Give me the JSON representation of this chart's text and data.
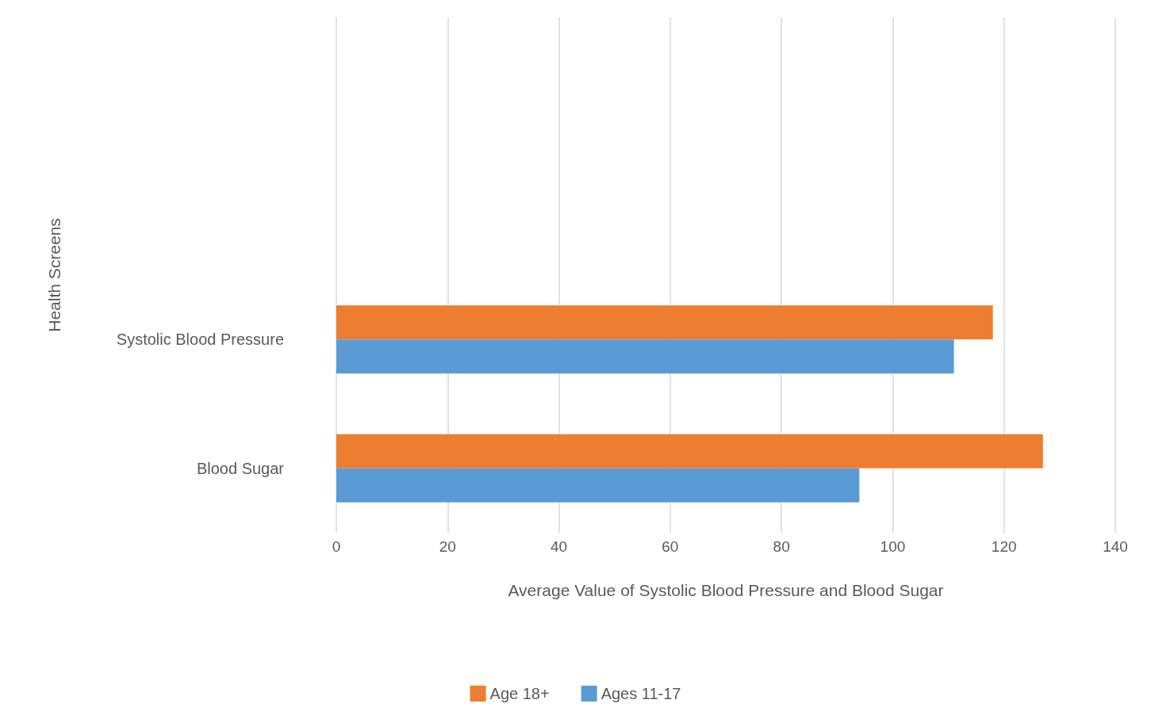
{
  "chart_data": {
    "type": "bar",
    "orientation": "horizontal",
    "xlabel": "Average Value of Systolic Blood Pressure and Blood Sugar",
    "ylabel": "Health Screens",
    "categories": [
      null,
      null,
      "Systolic Blood Pressure",
      "Blood Sugar"
    ],
    "series": [
      {
        "name": "Age 18+",
        "color": "#ed7d31",
        "values": [
          null,
          null,
          118,
          127
        ]
      },
      {
        "name": "Ages 11-17",
        "color": "#5b9bd5",
        "values": [
          null,
          null,
          111,
          94
        ]
      }
    ],
    "xlim": [
      0,
      140
    ],
    "xticks": [
      0,
      20,
      40,
      60,
      80,
      100,
      120,
      140
    ],
    "grid": "x",
    "legend": "bottom"
  }
}
